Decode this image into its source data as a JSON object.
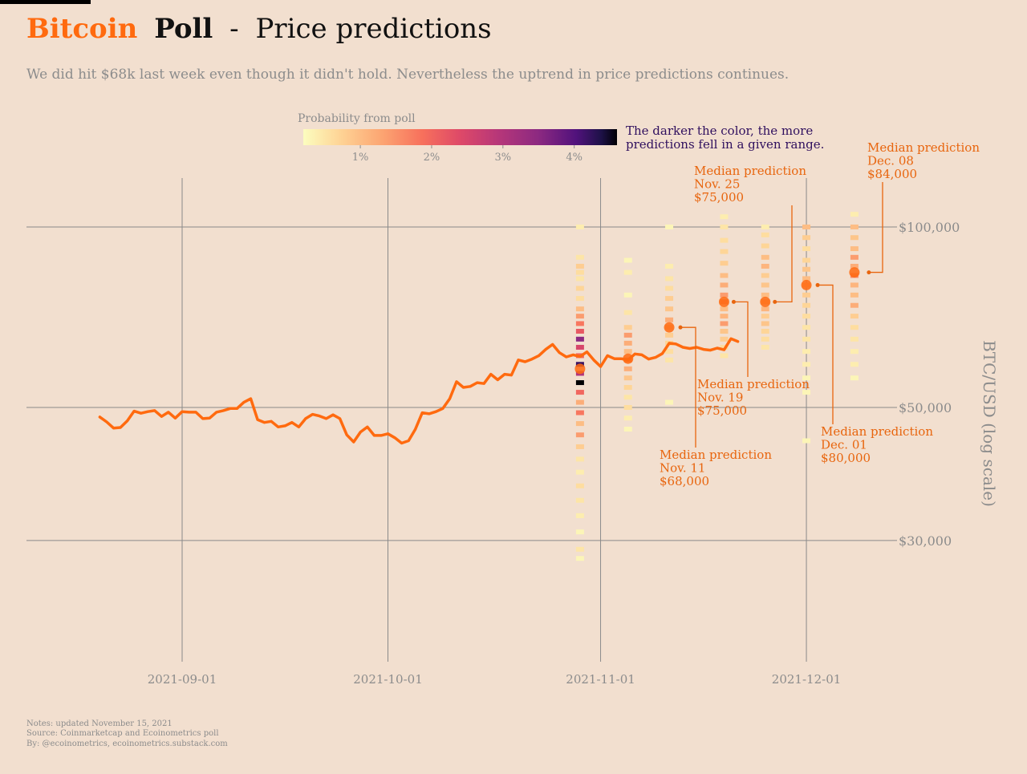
{
  "header": {
    "title_brand": "Bitcoin",
    "title_poll": "Poll",
    "title_sep": "-",
    "title_rest": "Price predictions",
    "subtitle": "We did hit $68k last week even though it didn't hold. Nevertheless the uptrend in price predictions continues."
  },
  "legend": {
    "title": "Probability from poll",
    "ticks": [
      "1%",
      "2%",
      "3%",
      "4%"
    ],
    "note_line1": "The darker the color, the more",
    "note_line2": "predictions fell in a given range."
  },
  "footer": {
    "line1": "Notes: updated November 15, 2021",
    "line2": "Source: Coinmarketcap and Ecoinometrics poll",
    "line3": "By: @ecoinometrics, ecoinometrics.substack.com"
  },
  "colors": {
    "background": "#f2dfcf",
    "accent_orange": "#ff6a0f",
    "annotation_orange": "#e8650e",
    "grid": "#8a8a8a",
    "muted_text": "#8c8c8c",
    "note_purple": "#2f0f5e"
  },
  "chart_data": {
    "type": "line",
    "x_scale": "date",
    "y_scale": "log",
    "ylabel": "BTC/USD (log scale)",
    "x_ticks": [
      "2021-09-01",
      "2021-10-01",
      "2021-11-01",
      "2021-12-01"
    ],
    "y_ticks": [
      {
        "value": 30000,
        "label": "$30,000"
      },
      {
        "value": 50000,
        "label": "$50,000"
      },
      {
        "value": 100000,
        "label": "$100,000"
      }
    ],
    "ylim": [
      20000,
      130000
    ],
    "xlim": [
      "2021-08-14",
      "2021-12-14"
    ],
    "grid": true,
    "series": [
      {
        "start_date": "2021-08-20",
        "values": [
          48200,
          47300,
          46200,
          46300,
          47500,
          49300,
          48900,
          49200,
          49400,
          48300,
          49100,
          48000,
          49200,
          49100,
          49100,
          47900,
          48000,
          49100,
          49400,
          49800,
          49800,
          51000,
          51700,
          47700,
          47200,
          47400,
          46400,
          46600,
          47200,
          46400,
          47900,
          48700,
          48400,
          47900,
          48600,
          47900,
          45000,
          43800,
          45500,
          46400,
          44900,
          44900,
          45200,
          44500,
          43600,
          44000,
          46000,
          49000,
          48800,
          49200,
          49800,
          51700,
          55200,
          54000,
          54200,
          55000,
          54800,
          56800,
          55600,
          56800,
          56600,
          60000,
          59600,
          60200,
          61000,
          62500,
          63700,
          61700,
          60700,
          61200,
          60800,
          61900,
          60000,
          58500,
          61000,
          60300,
          60300,
          60000,
          61400,
          61200,
          60200,
          60600,
          61500,
          64000,
          63800,
          63000,
          62700,
          63000,
          62500,
          62300,
          62800,
          62400,
          65100,
          64400
        ],
        "color": "#ff6a0f"
      }
    ],
    "medians": [
      {
        "date": "2021-10-29",
        "value": 58000,
        "label": ""
      },
      {
        "date": "2021-11-05",
        "value": 60300,
        "label": ""
      },
      {
        "date": "2021-11-11",
        "value": 68000,
        "label_lines": [
          "Median prediction",
          "Nov. 11",
          "$68,000"
        ]
      },
      {
        "date": "2021-11-19",
        "value": 75000,
        "label_lines": [
          "Median prediction",
          "Nov. 19",
          "$75,000"
        ]
      },
      {
        "date": "2021-11-25",
        "value": 75000,
        "label_lines": [
          "Median prediction",
          "Nov. 25",
          "$75,000"
        ]
      },
      {
        "date": "2021-12-01",
        "value": 80000,
        "label_lines": [
          "Median prediction",
          "Dec. 01",
          "$80,000"
        ]
      },
      {
        "date": "2021-12-08",
        "value": 84000,
        "label_lines": [
          "Median prediction",
          "Dec. 08",
          "$84,000"
        ]
      }
    ],
    "prediction_heatmap": [
      {
        "date": "2021-10-29",
        "bins": [
          [
            100000,
            0.4
          ],
          [
            89000,
            0.5
          ],
          [
            86000,
            0.8
          ],
          [
            84000,
            0.6
          ],
          [
            82000,
            0.5
          ],
          [
            79000,
            0.7
          ],
          [
            76000,
            0.6
          ],
          [
            73000,
            1.0
          ],
          [
            71000,
            1.4
          ],
          [
            69000,
            1.8
          ],
          [
            67000,
            2.2
          ],
          [
            65000,
            3.5
          ],
          [
            63000,
            2.5
          ],
          [
            61000,
            2.0
          ],
          [
            59000,
            4.2
          ],
          [
            57000,
            3.0
          ],
          [
            55000,
            4.8
          ],
          [
            53000,
            2.0
          ],
          [
            51000,
            1.2
          ],
          [
            49000,
            1.8
          ],
          [
            47000,
            1.0
          ],
          [
            45000,
            1.4
          ],
          [
            43000,
            0.8
          ],
          [
            41000,
            0.5
          ],
          [
            39000,
            0.4
          ],
          [
            37000,
            0.6
          ],
          [
            35000,
            0.5
          ],
          [
            33000,
            0.4
          ],
          [
            31000,
            0.3
          ],
          [
            29000,
            0.5
          ],
          [
            28000,
            0.3
          ]
        ]
      },
      {
        "date": "2021-11-05",
        "bins": [
          [
            88000,
            0.3
          ],
          [
            84000,
            0.4
          ],
          [
            77000,
            0.3
          ],
          [
            72000,
            0.5
          ],
          [
            68000,
            0.8
          ],
          [
            66000,
            1.4
          ],
          [
            64000,
            1.2
          ],
          [
            62000,
            1.0
          ],
          [
            60000,
            1.6
          ],
          [
            58000,
            1.2
          ],
          [
            56000,
            0.9
          ],
          [
            54000,
            0.7
          ],
          [
            52000,
            0.5
          ],
          [
            50000,
            0.6
          ],
          [
            48000,
            0.4
          ],
          [
            46000,
            0.3
          ]
        ]
      },
      {
        "date": "2021-11-11",
        "bins": [
          [
            100000,
            0.3
          ],
          [
            86000,
            0.4
          ],
          [
            82000,
            0.5
          ],
          [
            79000,
            0.6
          ],
          [
            76000,
            0.8
          ],
          [
            73000,
            0.9
          ],
          [
            70000,
            1.2
          ],
          [
            68000,
            1.0
          ],
          [
            66000,
            0.8
          ],
          [
            64000,
            0.7
          ],
          [
            62000,
            0.6
          ],
          [
            60000,
            0.5
          ],
          [
            51000,
            0.3
          ]
        ]
      },
      {
        "date": "2021-11-19",
        "bins": [
          [
            104000,
            0.4
          ],
          [
            100000,
            0.5
          ],
          [
            95000,
            0.6
          ],
          [
            91000,
            0.7
          ],
          [
            87000,
            0.8
          ],
          [
            83000,
            1.0
          ],
          [
            80000,
            1.2
          ],
          [
            77000,
            1.4
          ],
          [
            75000,
            1.6
          ],
          [
            73000,
            1.0
          ],
          [
            71000,
            1.1
          ],
          [
            69000,
            1.4
          ],
          [
            67000,
            0.9
          ],
          [
            65000,
            0.8
          ],
          [
            63000,
            0.6
          ],
          [
            61000,
            0.5
          ]
        ]
      },
      {
        "date": "2021-11-25",
        "bins": [
          [
            100000,
            0.4
          ],
          [
            97000,
            0.6
          ],
          [
            93000,
            0.7
          ],
          [
            89000,
            1.0
          ],
          [
            86000,
            1.1
          ],
          [
            83000,
            0.8
          ],
          [
            80000,
            0.9
          ],
          [
            77000,
            1.0
          ],
          [
            75000,
            1.2
          ],
          [
            73000,
            1.1
          ],
          [
            71000,
            0.8
          ],
          [
            69000,
            0.9
          ],
          [
            67000,
            0.7
          ],
          [
            65000,
            0.6
          ],
          [
            63000,
            0.5
          ]
        ]
      },
      {
        "date": "2021-12-01",
        "bins": [
          [
            100000,
            1.0
          ],
          [
            96000,
            0.8
          ],
          [
            92000,
            0.6
          ],
          [
            88000,
            0.7
          ],
          [
            85000,
            0.9
          ],
          [
            82000,
            1.0
          ],
          [
            80000,
            1.1
          ],
          [
            77000,
            0.8
          ],
          [
            74000,
            0.7
          ],
          [
            71000,
            0.6
          ],
          [
            68000,
            0.5
          ],
          [
            65000,
            0.5
          ],
          [
            62000,
            0.4
          ],
          [
            59000,
            0.4
          ],
          [
            56000,
            0.3
          ],
          [
            53000,
            0.3
          ],
          [
            44000,
            0.3
          ]
        ]
      },
      {
        "date": "2021-12-08",
        "bins": [
          [
            105000,
            0.4
          ],
          [
            100000,
            1.0
          ],
          [
            96000,
            0.9
          ],
          [
            92000,
            1.0
          ],
          [
            89000,
            1.4
          ],
          [
            86000,
            1.2
          ],
          [
            83000,
            1.6
          ],
          [
            80000,
            1.1
          ],
          [
            77000,
            1.0
          ],
          [
            74000,
            1.2
          ],
          [
            71000,
            0.8
          ],
          [
            68000,
            0.6
          ],
          [
            65000,
            0.5
          ],
          [
            62000,
            0.4
          ],
          [
            59000,
            0.4
          ],
          [
            56000,
            0.3
          ]
        ]
      }
    ],
    "colorbar": {
      "min": 0.2,
      "max": 4.6
    }
  }
}
